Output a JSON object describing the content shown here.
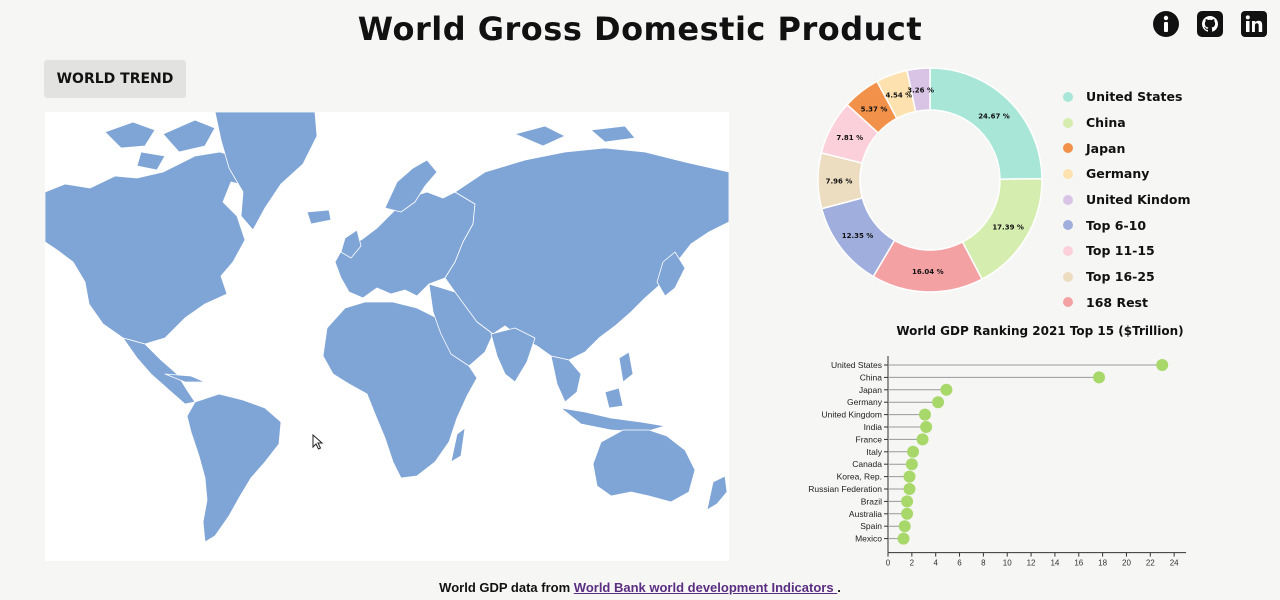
{
  "header": {
    "title": "World Gross Domestic Product",
    "icons": [
      "info-icon",
      "github-icon",
      "linkedin-icon"
    ]
  },
  "controls": {
    "world_trend_label": "WORLD TREND"
  },
  "map": {
    "fill_color": "#7fa4d6",
    "border_color": "#ffffff",
    "background": "#ffffff"
  },
  "chart_data": [
    {
      "type": "pie",
      "subtype": "donut",
      "labels": [
        "United States",
        "China",
        "Japan",
        "Germany",
        "United Kindom",
        "Top 6-10",
        "Top 11-15",
        "Top 16-25",
        "168 Rest"
      ],
      "values": [
        24.67,
        17.39,
        5.37,
        4.54,
        3.26,
        12.35,
        7.81,
        7.96,
        16.04
      ],
      "value_labels": [
        "24.67 %",
        "17.39 %",
        "5.37 %",
        "4.54 %",
        "3.26 %",
        "12.35 %",
        "7.81 %",
        "7.96 %",
        "16.04 %"
      ],
      "colors": [
        "#a8e6d8",
        "#d6edb0",
        "#f2914a",
        "#fde2b0",
        "#d9c4e6",
        "#9faedc",
        "#fbd0da",
        "#ecdcc0",
        "#f4a1a4"
      ],
      "drawing_order": [
        "United States",
        "China",
        "168 Rest",
        "Top 6-10",
        "Top 16-25",
        "Top 11-15",
        "Japan",
        "Germany",
        "United Kindom"
      ],
      "legend_position": "right"
    },
    {
      "type": "lollipop",
      "title": "World GDP Ranking 2021 Top 15 ($Trillion)",
      "categories": [
        "United States",
        "China",
        "Japan",
        "Germany",
        "United Kingdom",
        "India",
        "France",
        "Italy",
        "Canada",
        "Korea, Rep.",
        "Russian Federation",
        "Brazil",
        "Australia",
        "Spain",
        "Mexico"
      ],
      "values": [
        23.0,
        17.7,
        4.9,
        4.2,
        3.1,
        3.2,
        2.9,
        2.1,
        2.0,
        1.8,
        1.8,
        1.6,
        1.6,
        1.4,
        1.3
      ],
      "xlim": [
        0,
        26
      ],
      "x_ticks": [
        0,
        2,
        4,
        6,
        8,
        10,
        12,
        14,
        16,
        18,
        20,
        22,
        24
      ],
      "color": "#a8d86a",
      "stem_color": "#999999"
    }
  ],
  "footer": {
    "prefix": "World GDP data from",
    "link_text": "World Bank world development Indicators ",
    "suffix": "."
  }
}
